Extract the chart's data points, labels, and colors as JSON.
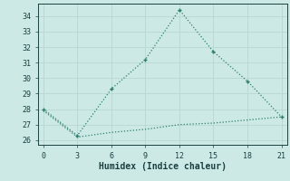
{
  "xlabel": "Humidex (Indice chaleur)",
  "line1_x": [
    0,
    3,
    6,
    9,
    12,
    15,
    18,
    21
  ],
  "line1_y": [
    28.0,
    26.3,
    29.3,
    31.2,
    34.4,
    31.7,
    29.8,
    27.5
  ],
  "line2_x": [
    0,
    3,
    6,
    9,
    12,
    15,
    18,
    21
  ],
  "line2_y": [
    27.9,
    26.2,
    26.5,
    26.7,
    27.0,
    27.1,
    27.3,
    27.5
  ],
  "line_color": "#2e7d6e",
  "bg_color": "#cce9e5",
  "grid_color": "#b8d8d4",
  "text_color": "#1a4040",
  "xlim": [
    -0.5,
    21.5
  ],
  "ylim": [
    25.7,
    34.8
  ],
  "xticks": [
    0,
    3,
    6,
    9,
    12,
    15,
    18,
    21
  ],
  "yticks": [
    26,
    27,
    28,
    29,
    30,
    31,
    32,
    33,
    34
  ],
  "markersize": 3.5,
  "linewidth": 0.9,
  "linestyle": "dotted"
}
